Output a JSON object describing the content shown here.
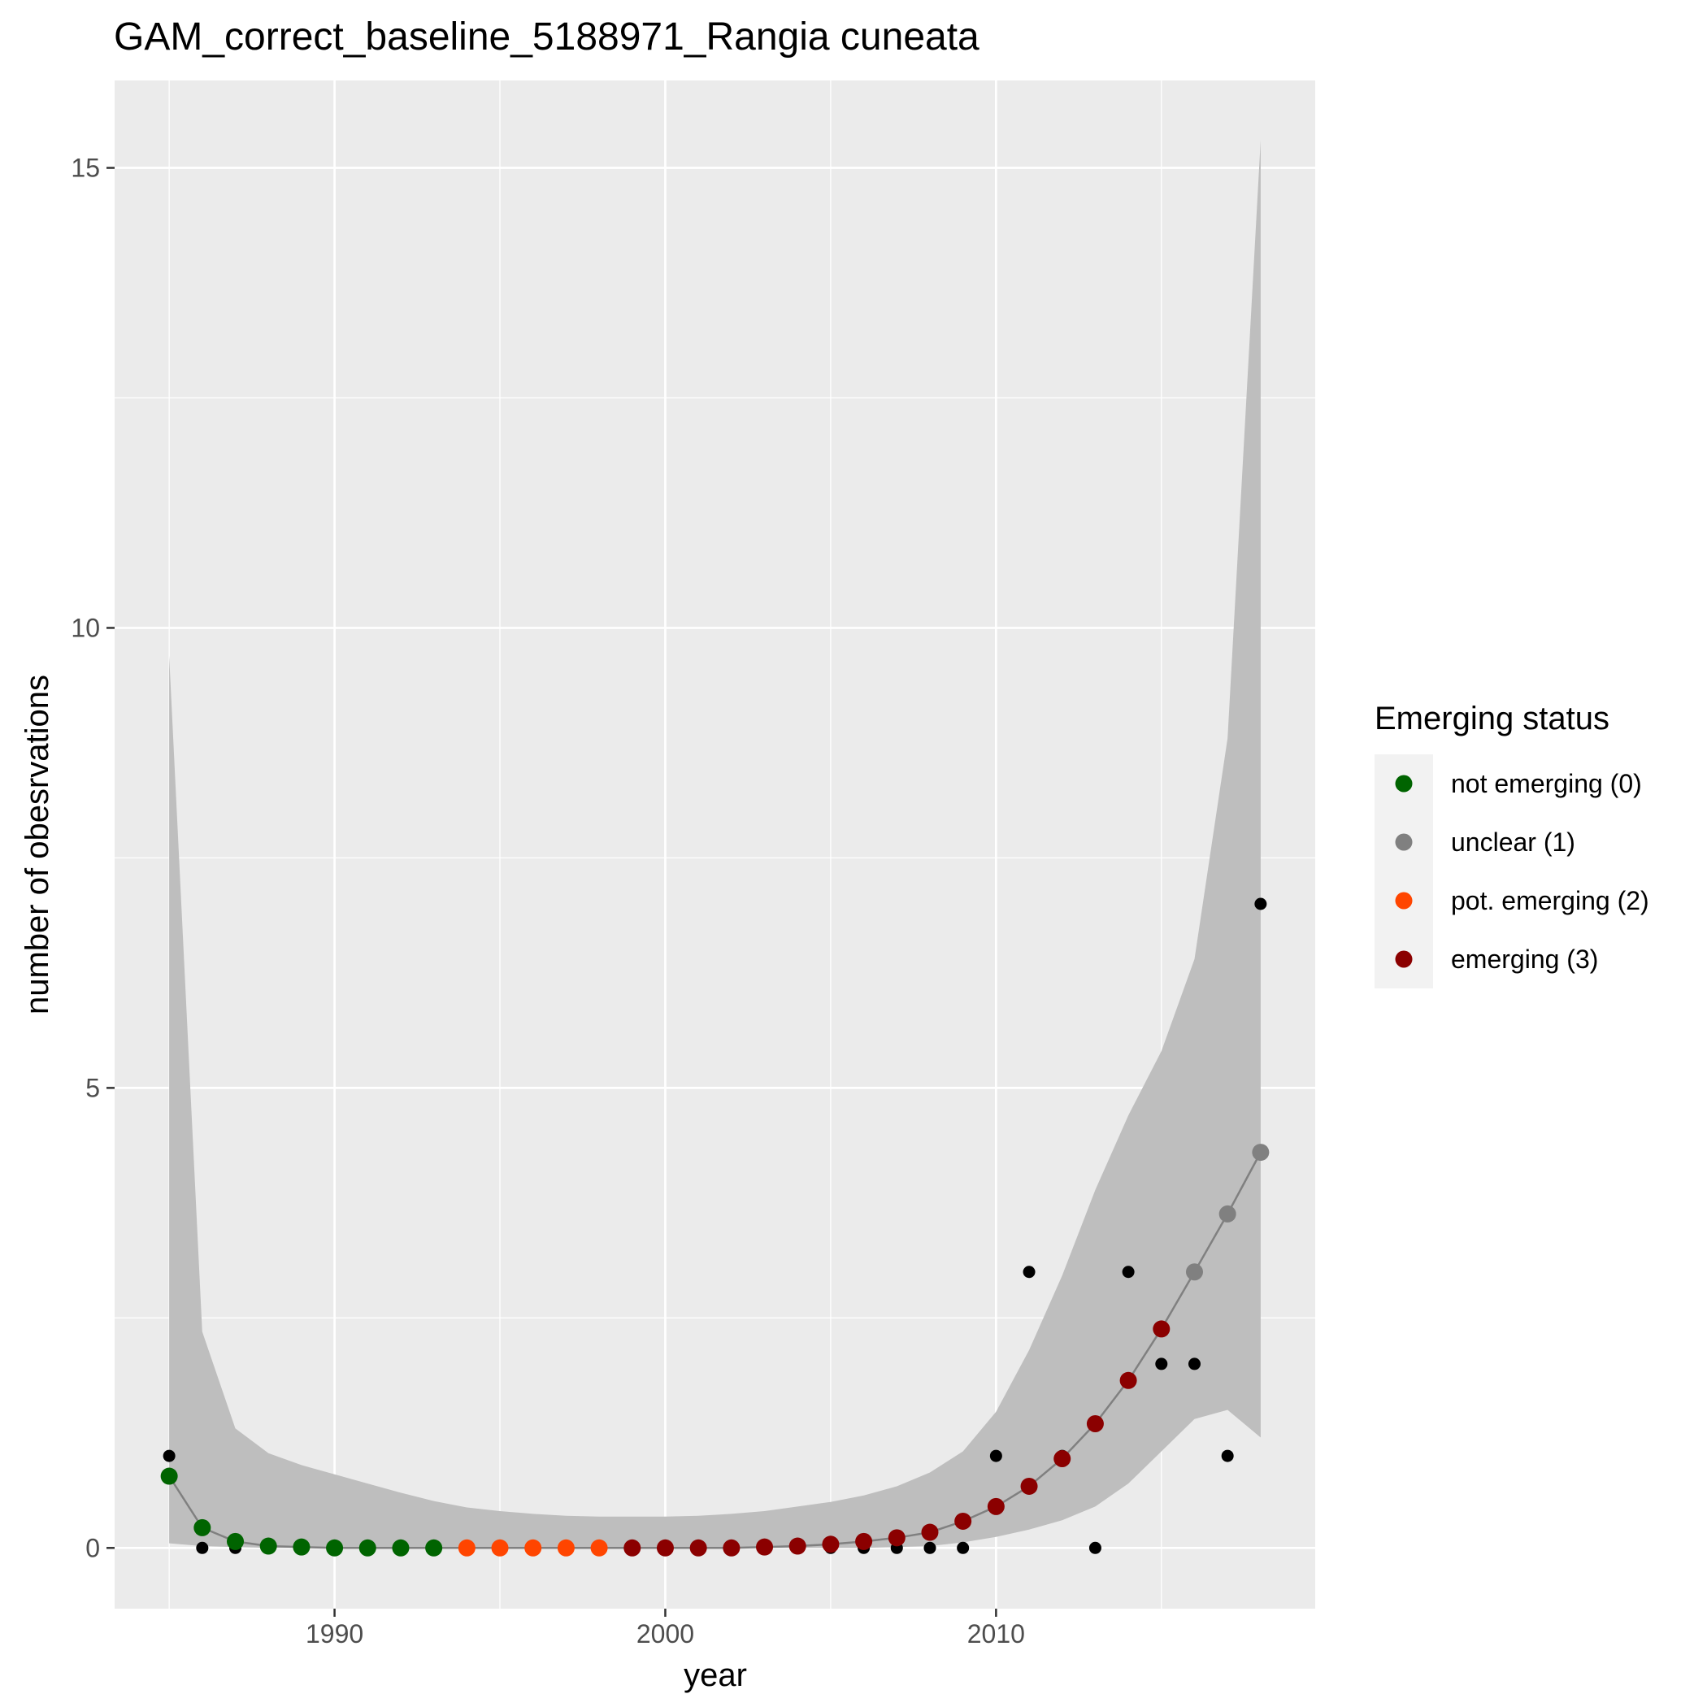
{
  "chart_data": {
    "type": "scatter",
    "title": "GAM_correct_baseline_5188971_Rangia cuneata",
    "xlabel": "year",
    "ylabel": "number of obesrvations",
    "xlim": [
      1983.35,
      2019.65
    ],
    "ylim": [
      -0.66,
      15.95
    ],
    "x_ticks": [
      1990,
      2000,
      2010
    ],
    "x_tick_labels": [
      "1990",
      "2000",
      "2010"
    ],
    "y_ticks": [
      0,
      5,
      10,
      15
    ],
    "y_tick_labels": [
      "0",
      "5",
      "10",
      "15"
    ],
    "grid": true,
    "legend": {
      "title": "Emerging status",
      "position": "right",
      "entries": [
        {
          "label": "not emerging (0)",
          "color": "#006400"
        },
        {
          "label": "unclear (1)",
          "color": "#808080"
        },
        {
          "label": "pot. emerging (2)",
          "color": "#FF4500"
        },
        {
          "label": "emerging (3)",
          "color": "#8B0000"
        }
      ]
    },
    "colors": {
      "panel_background": "#EBEBEB",
      "grid": "#FFFFFF",
      "ribbon": "#BEBEBE",
      "fit_line": "#808080",
      "observed": "#000000"
    },
    "observed": {
      "x": [
        1985,
        1986,
        1987,
        1999,
        2000,
        2001,
        2002,
        2003,
        2004,
        2005,
        2006,
        2007,
        2008,
        2009,
        2010,
        2011,
        2012,
        2013,
        2014,
        2015,
        2016,
        2017,
        2018
      ],
      "y": [
        1,
        0,
        0,
        0,
        0,
        0,
        0,
        0,
        0,
        0,
        0,
        0,
        0,
        0,
        1,
        3,
        1,
        0,
        3,
        2,
        2,
        1,
        7
      ]
    },
    "fit": {
      "x": [
        1985,
        1986,
        1987,
        1988,
        1989,
        1990,
        1991,
        1992,
        1993,
        1994,
        1995,
        1996,
        1997,
        1998,
        1999,
        2000,
        2001,
        2002,
        2003,
        2004,
        2005,
        2006,
        2007,
        2008,
        2009,
        2010,
        2011,
        2012,
        2013,
        2014,
        2015,
        2016,
        2017,
        2018
      ],
      "y": [
        0.78,
        0.22,
        0.07,
        0.02,
        0.01,
        0.0,
        0.0,
        0.0,
        0.0,
        0.0,
        0.0,
        0.0,
        0.0,
        0.0,
        0.0,
        0.0,
        0.0,
        0.0,
        0.01,
        0.02,
        0.04,
        0.07,
        0.11,
        0.17,
        0.29,
        0.45,
        0.67,
        0.97,
        1.35,
        1.82,
        2.38,
        3.0,
        3.63,
        4.3
      ],
      "status": [
        0,
        0,
        0,
        0,
        0,
        0,
        0,
        0,
        0,
        2,
        2,
        2,
        2,
        2,
        3,
        3,
        3,
        3,
        3,
        3,
        3,
        3,
        3,
        3,
        3,
        3,
        3,
        3,
        3,
        3,
        3,
        1,
        1,
        1
      ],
      "lower": [
        0.05,
        0.02,
        0.01,
        0.0,
        0.0,
        0.0,
        0.0,
        0.0,
        0.0,
        0.0,
        0.0,
        0.0,
        0.0,
        0.0,
        0.0,
        0.0,
        0.0,
        0.0,
        0.0,
        0.0,
        0.0,
        0.0,
        0.01,
        0.02,
        0.06,
        0.12,
        0.2,
        0.3,
        0.45,
        0.7,
        1.05,
        1.4,
        1.5,
        1.2
      ],
      "upper": [
        9.7,
        2.35,
        1.3,
        1.03,
        0.9,
        0.8,
        0.7,
        0.6,
        0.51,
        0.44,
        0.4,
        0.37,
        0.35,
        0.34,
        0.34,
        0.34,
        0.35,
        0.37,
        0.4,
        0.45,
        0.5,
        0.57,
        0.67,
        0.82,
        1.05,
        1.48,
        2.15,
        2.96,
        3.89,
        4.7,
        5.4,
        6.4,
        8.8,
        15.3
      ]
    }
  }
}
